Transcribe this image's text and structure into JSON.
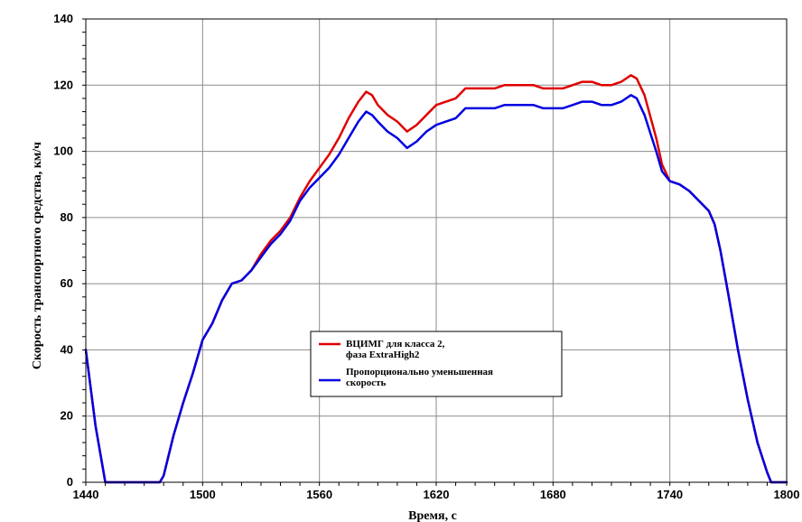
{
  "chart_data": {
    "type": "line",
    "title": "",
    "xlabel": "Время, с",
    "ylabel": "Скорость транспортного средства, км/ч",
    "xlim": [
      1440,
      1800
    ],
    "ylim": [
      0,
      140
    ],
    "x_ticks": [
      1440,
      1500,
      1560,
      1620,
      1680,
      1740,
      1800
    ],
    "y_ticks": [
      0,
      20,
      40,
      60,
      80,
      100,
      120,
      140
    ],
    "grid": true,
    "legend_position": "center",
    "series": [
      {
        "name": "ВЦИМГ для класса 2,\nфаза ExtraHigh2",
        "color": "#e00000",
        "points": [
          [
            1440,
            40
          ],
          [
            1445,
            17
          ],
          [
            1450,
            0
          ],
          [
            1460,
            0
          ],
          [
            1470,
            0
          ],
          [
            1478,
            0
          ],
          [
            1480,
            2
          ],
          [
            1485,
            14
          ],
          [
            1490,
            24
          ],
          [
            1495,
            33
          ],
          [
            1500,
            43
          ],
          [
            1505,
            48
          ],
          [
            1510,
            55
          ],
          [
            1515,
            60
          ],
          [
            1520,
            61
          ],
          [
            1525,
            64
          ],
          [
            1530,
            69
          ],
          [
            1535,
            73
          ],
          [
            1540,
            76
          ],
          [
            1545,
            80
          ],
          [
            1550,
            86
          ],
          [
            1555,
            91
          ],
          [
            1560,
            95
          ],
          [
            1565,
            99
          ],
          [
            1570,
            104
          ],
          [
            1575,
            110
          ],
          [
            1580,
            115
          ],
          [
            1584,
            118
          ],
          [
            1587,
            117
          ],
          [
            1590,
            114
          ],
          [
            1595,
            111
          ],
          [
            1600,
            109
          ],
          [
            1605,
            106
          ],
          [
            1610,
            108
          ],
          [
            1615,
            111
          ],
          [
            1620,
            114
          ],
          [
            1625,
            115
          ],
          [
            1630,
            116
          ],
          [
            1635,
            119
          ],
          [
            1640,
            119
          ],
          [
            1645,
            119
          ],
          [
            1650,
            119
          ],
          [
            1655,
            120
          ],
          [
            1660,
            120
          ],
          [
            1665,
            120
          ],
          [
            1670,
            120
          ],
          [
            1675,
            119
          ],
          [
            1680,
            119
          ],
          [
            1685,
            119
          ],
          [
            1690,
            120
          ],
          [
            1695,
            121
          ],
          [
            1700,
            121
          ],
          [
            1705,
            120
          ],
          [
            1710,
            120
          ],
          [
            1715,
            121
          ],
          [
            1720,
            123
          ],
          [
            1723,
            122
          ],
          [
            1727,
            117
          ],
          [
            1733,
            104
          ],
          [
            1736,
            96
          ],
          [
            1740,
            91
          ],
          [
            1745,
            90
          ],
          [
            1750,
            88
          ],
          [
            1755,
            85
          ],
          [
            1760,
            82
          ],
          [
            1763,
            78
          ],
          [
            1766,
            70
          ],
          [
            1770,
            57
          ],
          [
            1775,
            40
          ],
          [
            1780,
            25
          ],
          [
            1785,
            12
          ],
          [
            1790,
            3
          ],
          [
            1792,
            0
          ],
          [
            1800,
            0
          ]
        ]
      },
      {
        "name": "Пропорционально уменьшенная\nскорость",
        "color": "#0000e0",
        "points": [
          [
            1440,
            40
          ],
          [
            1445,
            17
          ],
          [
            1450,
            0
          ],
          [
            1460,
            0
          ],
          [
            1470,
            0
          ],
          [
            1478,
            0
          ],
          [
            1480,
            2
          ],
          [
            1485,
            14
          ],
          [
            1490,
            24
          ],
          [
            1495,
            33
          ],
          [
            1500,
            43
          ],
          [
            1505,
            48
          ],
          [
            1510,
            55
          ],
          [
            1515,
            60
          ],
          [
            1520,
            61
          ],
          [
            1525,
            64
          ],
          [
            1530,
            68
          ],
          [
            1535,
            72
          ],
          [
            1540,
            75
          ],
          [
            1545,
            79
          ],
          [
            1550,
            85
          ],
          [
            1555,
            89
          ],
          [
            1560,
            92
          ],
          [
            1565,
            95
          ],
          [
            1570,
            99
          ],
          [
            1575,
            104
          ],
          [
            1580,
            109
          ],
          [
            1584,
            112
          ],
          [
            1587,
            111
          ],
          [
            1590,
            109
          ],
          [
            1595,
            106
          ],
          [
            1600,
            104
          ],
          [
            1605,
            101
          ],
          [
            1610,
            103
          ],
          [
            1615,
            106
          ],
          [
            1620,
            108
          ],
          [
            1625,
            109
          ],
          [
            1630,
            110
          ],
          [
            1635,
            113
          ],
          [
            1640,
            113
          ],
          [
            1645,
            113
          ],
          [
            1650,
            113
          ],
          [
            1655,
            114
          ],
          [
            1660,
            114
          ],
          [
            1665,
            114
          ],
          [
            1670,
            114
          ],
          [
            1675,
            113
          ],
          [
            1680,
            113
          ],
          [
            1685,
            113
          ],
          [
            1690,
            114
          ],
          [
            1695,
            115
          ],
          [
            1700,
            115
          ],
          [
            1705,
            114
          ],
          [
            1710,
            114
          ],
          [
            1715,
            115
          ],
          [
            1720,
            117
          ],
          [
            1723,
            116
          ],
          [
            1727,
            111
          ],
          [
            1733,
            100
          ],
          [
            1736,
            94
          ],
          [
            1740,
            91
          ],
          [
            1745,
            90
          ],
          [
            1750,
            88
          ],
          [
            1755,
            85
          ],
          [
            1760,
            82
          ],
          [
            1763,
            78
          ],
          [
            1766,
            70
          ],
          [
            1770,
            57
          ],
          [
            1775,
            40
          ],
          [
            1780,
            25
          ],
          [
            1785,
            12
          ],
          [
            1790,
            3
          ],
          [
            1792,
            0
          ],
          [
            1800,
            0
          ]
        ]
      }
    ]
  }
}
